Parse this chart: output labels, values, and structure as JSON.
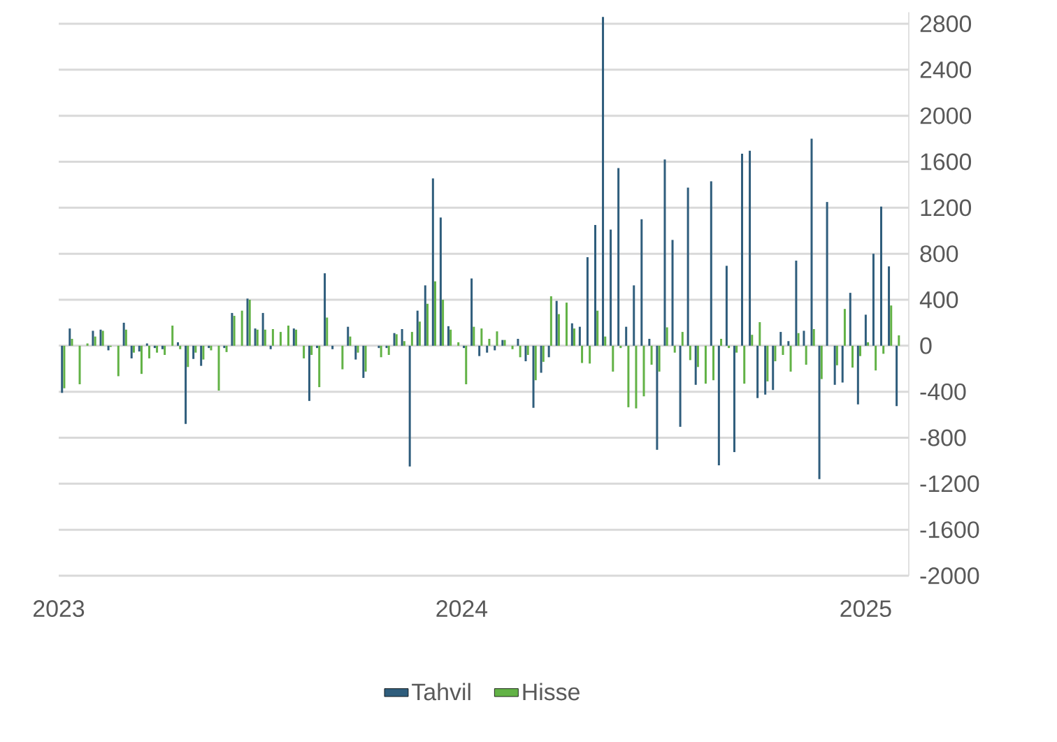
{
  "chart_data": {
    "type": "bar",
    "x": [
      "2023-01-05",
      "2023-01-12",
      "2023-01-19",
      "2023-01-26",
      "2023-02-02",
      "2023-02-09",
      "2023-02-16",
      "2023-02-23",
      "2023-03-02",
      "2023-03-09",
      "2023-03-16",
      "2023-03-23",
      "2023-03-30",
      "2023-04-06",
      "2023-04-13",
      "2023-04-20",
      "2023-04-27",
      "2023-05-04",
      "2023-05-11",
      "2023-05-18",
      "2023-05-25",
      "2023-06-01",
      "2023-06-08",
      "2023-06-15",
      "2023-06-22",
      "2023-06-29",
      "2023-07-06",
      "2023-07-13",
      "2023-07-20",
      "2023-07-27",
      "2023-08-03",
      "2023-08-10",
      "2023-08-17",
      "2023-08-24",
      "2023-08-31",
      "2023-09-07",
      "2023-09-14",
      "2023-09-21",
      "2023-09-28",
      "2023-10-05",
      "2023-10-12",
      "2023-10-19",
      "2023-10-26",
      "2023-11-02",
      "2023-11-09",
      "2023-11-16",
      "2023-11-23",
      "2023-11-30",
      "2023-12-07",
      "2023-12-14",
      "2023-12-21",
      "2023-12-28",
      "2024-01-04",
      "2024-01-11",
      "2024-01-18",
      "2024-01-25",
      "2024-02-01",
      "2024-02-08",
      "2024-02-15",
      "2024-02-22",
      "2024-02-29",
      "2024-03-07",
      "2024-03-14",
      "2024-03-21",
      "2024-03-28",
      "2024-04-04",
      "2024-04-11",
      "2024-04-18",
      "2024-04-25",
      "2024-05-02",
      "2024-05-09",
      "2024-05-16",
      "2024-05-23",
      "2024-05-30",
      "2024-06-06",
      "2024-06-13",
      "2024-06-20",
      "2024-06-27",
      "2024-07-04",
      "2024-07-11",
      "2024-07-18",
      "2024-07-25",
      "2024-08-01",
      "2024-08-08",
      "2024-08-15",
      "2024-08-22",
      "2024-08-29",
      "2024-09-05",
      "2024-09-12",
      "2024-09-19",
      "2024-09-26",
      "2024-10-03",
      "2024-10-10",
      "2024-10-17",
      "2024-10-24",
      "2024-10-31",
      "2024-11-07",
      "2024-11-14",
      "2024-11-21",
      "2024-11-28",
      "2024-12-05",
      "2024-12-12",
      "2024-12-19",
      "2024-12-26",
      "2025-01-02",
      "2025-01-09",
      "2025-01-16",
      "2025-01-23",
      "2025-01-30"
    ],
    "series": [
      {
        "name": "Tahvil",
        "color": "#2f5d7c",
        "values": [
          -410,
          150,
          0,
          0,
          130,
          140,
          -40,
          0,
          200,
          -110,
          -50,
          20,
          -20,
          -30,
          0,
          30,
          -680,
          -115,
          -175,
          -20,
          0,
          -20,
          285,
          0,
          410,
          150,
          285,
          -30,
          0,
          0,
          150,
          0,
          -480,
          -20,
          630,
          -30,
          0,
          165,
          -120,
          -280,
          0,
          -20,
          -20,
          110,
          145,
          -1050,
          305,
          525,
          1455,
          1115,
          170,
          0,
          -20,
          585,
          -90,
          -60,
          -40,
          50,
          0,
          60,
          -135,
          -540,
          -235,
          -100,
          390,
          0,
          195,
          165,
          770,
          1050,
          2860,
          1010,
          1545,
          165,
          525,
          1100,
          60,
          -905,
          1620,
          920,
          -705,
          1375,
          -340,
          0,
          1430,
          -1040,
          695,
          -925,
          1670,
          1695,
          -455,
          -425,
          -385,
          120,
          40,
          740,
          130,
          1800,
          -1160,
          1250,
          -340,
          -320,
          460,
          -510,
          270,
          800,
          1210,
          690,
          -525
        ]
      },
      {
        "name": "Hisse",
        "color": "#62b246",
        "values": [
          -370,
          60,
          -335,
          20,
          80,
          130,
          -10,
          -265,
          140,
          -60,
          -245,
          -110,
          -60,
          -80,
          175,
          -30,
          -185,
          -60,
          -120,
          -40,
          -390,
          -55,
          260,
          305,
          400,
          140,
          140,
          145,
          120,
          175,
          140,
          -110,
          -80,
          -360,
          245,
          0,
          -205,
          80,
          -60,
          -225,
          0,
          -100,
          -80,
          100,
          40,
          120,
          210,
          365,
          560,
          400,
          140,
          30,
          -335,
          165,
          150,
          60,
          125,
          50,
          -30,
          -100,
          -80,
          -300,
          -140,
          430,
          275,
          375,
          150,
          -150,
          -155,
          305,
          80,
          -225,
          -20,
          -535,
          -545,
          -440,
          -165,
          -225,
          160,
          -60,
          120,
          -125,
          -185,
          -330,
          -300,
          60,
          -20,
          -60,
          -330,
          95,
          205,
          -310,
          -135,
          -80,
          -225,
          110,
          -165,
          145,
          -290,
          0,
          -170,
          320,
          -190,
          -90,
          30,
          -215,
          -70,
          350,
          90
        ]
      }
    ],
    "xlim": [
      "2023-01-01",
      "2025-02-09"
    ],
    "xticks": [
      {
        "value": "2023-01-01",
        "label": "2023"
      },
      {
        "value": "2024-01-01",
        "label": "2024"
      },
      {
        "value": "2025-01-01",
        "label": "2025"
      }
    ],
    "ylim": [
      -2000,
      2900
    ],
    "yticks": [
      -2000,
      -1600,
      -1200,
      -800,
      -400,
      0,
      400,
      800,
      1200,
      1600,
      2000,
      2400,
      2800
    ],
    "grid": "y",
    "legend": "bottom"
  }
}
